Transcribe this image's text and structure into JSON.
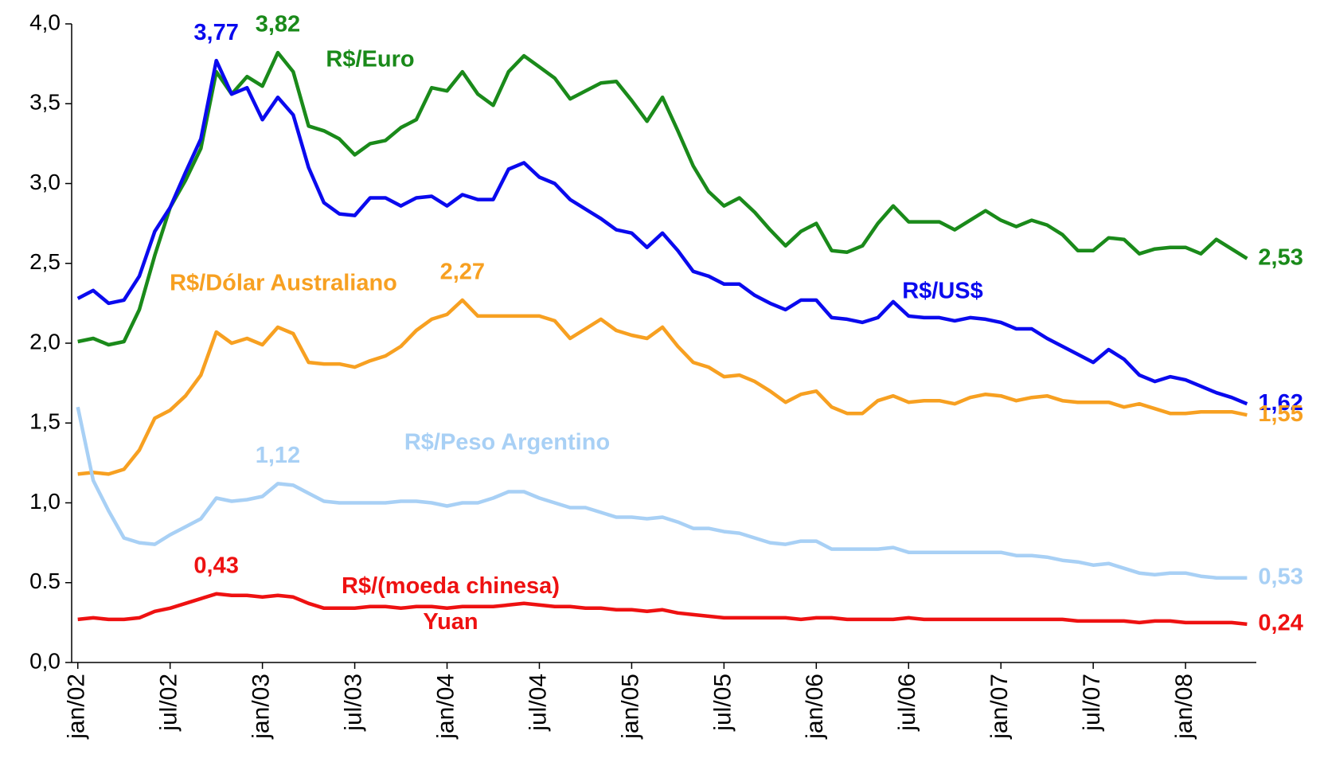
{
  "chart_data": {
    "type": "line",
    "categories": [
      "jan/02",
      null,
      null,
      null,
      null,
      null,
      "jul/02",
      null,
      null,
      null,
      null,
      null,
      "jan/03",
      null,
      null,
      null,
      null,
      null,
      "jul/03",
      null,
      null,
      null,
      null,
      null,
      "jan/04",
      null,
      null,
      null,
      null,
      null,
      "jul/04",
      null,
      null,
      null,
      null,
      null,
      "jan/05",
      null,
      null,
      null,
      null,
      null,
      "jul/05",
      null,
      null,
      null,
      null,
      null,
      "jan/06",
      null,
      null,
      null,
      null,
      null,
      "jul/06",
      null,
      null,
      null,
      null,
      null,
      "jan/07",
      null,
      null,
      null,
      null,
      null,
      "jul/07",
      null,
      null,
      null,
      null,
      null,
      "jan/08",
      null,
      null,
      null,
      null
    ],
    "ylim": [
      0,
      4
    ],
    "yticks": [
      {
        "value": 0,
        "label": "0,0"
      },
      {
        "value": 0.5,
        "label": "0.5"
      },
      {
        "value": 1,
        "label": "1,0"
      },
      {
        "value": 1.5,
        "label": "1,5"
      },
      {
        "value": 2,
        "label": "2,0"
      },
      {
        "value": 2.5,
        "label": "2,5"
      },
      {
        "value": 3,
        "label": "3,0"
      },
      {
        "value": 3.5,
        "label": "3,5"
      },
      {
        "value": 4,
        "label": "4,0"
      }
    ],
    "grid": false,
    "series": [
      {
        "name": "R$/Euro",
        "color": "#1a8a1a",
        "values": [
          2.01,
          2.03,
          1.99,
          2.01,
          2.21,
          2.55,
          2.85,
          3.02,
          3.22,
          3.7,
          3.56,
          3.67,
          3.61,
          3.82,
          3.7,
          3.36,
          3.33,
          3.28,
          3.18,
          3.25,
          3.27,
          3.35,
          3.4,
          3.6,
          3.58,
          3.7,
          3.56,
          3.49,
          3.7,
          3.8,
          3.73,
          3.66,
          3.53,
          3.58,
          3.63,
          3.64,
          3.52,
          3.39,
          3.54,
          3.33,
          3.11,
          2.95,
          2.86,
          2.91,
          2.82,
          2.71,
          2.61,
          2.7,
          2.75,
          2.58,
          2.57,
          2.61,
          2.75,
          2.86,
          2.76,
          2.76,
          2.76,
          2.71,
          2.77,
          2.83,
          2.77,
          2.73,
          2.77,
          2.74,
          2.68,
          2.58,
          2.58,
          2.66,
          2.65,
          2.56,
          2.59,
          2.6,
          2.6,
          2.56,
          2.65,
          2.59,
          2.53
        ],
        "value_labels": [
          null,
          null,
          null,
          null,
          null,
          null,
          null,
          null,
          null,
          null,
          null,
          null,
          null,
          "3,82",
          null,
          null,
          null,
          null,
          null,
          null,
          null,
          null,
          null,
          null,
          null,
          null,
          null,
          null,
          null,
          null,
          null,
          null,
          null,
          null,
          null,
          null,
          null,
          null,
          null,
          null,
          null,
          null,
          null,
          null,
          null,
          null,
          null,
          null,
          null,
          null,
          null,
          null,
          null,
          null,
          null,
          null,
          null,
          null,
          null,
          null,
          null,
          null,
          null,
          null,
          null,
          null,
          null,
          null,
          null,
          null,
          null,
          null,
          null,
          null,
          null,
          null,
          "2,53"
        ]
      },
      {
        "name": "R$/US$",
        "color": "#0a0aee",
        "values": [
          2.28,
          2.33,
          2.25,
          2.27,
          2.42,
          2.7,
          2.85,
          3.07,
          3.28,
          3.77,
          3.56,
          3.6,
          3.4,
          3.54,
          3.43,
          3.1,
          2.88,
          2.81,
          2.8,
          2.91,
          2.91,
          2.86,
          2.91,
          2.92,
          2.86,
          2.93,
          2.9,
          2.9,
          3.09,
          3.13,
          3.04,
          3.0,
          2.9,
          2.84,
          2.78,
          2.71,
          2.69,
          2.6,
          2.69,
          2.58,
          2.45,
          2.42,
          2.37,
          2.37,
          2.3,
          2.25,
          2.21,
          2.27,
          2.27,
          2.16,
          2.15,
          2.13,
          2.16,
          2.26,
          2.17,
          2.16,
          2.16,
          2.14,
          2.16,
          2.15,
          2.13,
          2.09,
          2.09,
          2.03,
          1.98,
          1.93,
          1.88,
          1.96,
          1.9,
          1.8,
          1.76,
          1.79,
          1.77,
          1.73,
          1.69,
          1.66,
          1.62
        ],
        "value_labels": [
          null,
          null,
          null,
          null,
          null,
          null,
          null,
          null,
          null,
          "3,77",
          null,
          null,
          null,
          null,
          null,
          null,
          null,
          null,
          null,
          null,
          null,
          null,
          null,
          null,
          null,
          null,
          null,
          null,
          null,
          null,
          null,
          null,
          null,
          null,
          null,
          null,
          null,
          null,
          null,
          null,
          null,
          null,
          null,
          null,
          null,
          null,
          null,
          null,
          null,
          null,
          null,
          null,
          null,
          null,
          null,
          null,
          null,
          null,
          null,
          null,
          null,
          null,
          null,
          null,
          null,
          null,
          null,
          null,
          null,
          null,
          null,
          null,
          null,
          null,
          null,
          null,
          "1,62"
        ]
      },
      {
        "name": "R$/Dólar Australiano",
        "color": "#f7a021",
        "values": [
          1.18,
          1.19,
          1.18,
          1.21,
          1.33,
          1.53,
          1.58,
          1.67,
          1.8,
          2.07,
          2.0,
          2.03,
          1.99,
          2.1,
          2.06,
          1.88,
          1.87,
          1.87,
          1.85,
          1.89,
          1.92,
          1.98,
          2.08,
          2.15,
          2.18,
          2.27,
          2.17,
          2.17,
          2.17,
          2.17,
          2.17,
          2.14,
          2.03,
          2.09,
          2.15,
          2.08,
          2.05,
          2.03,
          2.1,
          1.98,
          1.88,
          1.85,
          1.79,
          1.8,
          1.76,
          1.7,
          1.63,
          1.68,
          1.7,
          1.6,
          1.56,
          1.56,
          1.64,
          1.67,
          1.63,
          1.64,
          1.64,
          1.62,
          1.66,
          1.68,
          1.67,
          1.64,
          1.66,
          1.67,
          1.64,
          1.63,
          1.63,
          1.63,
          1.6,
          1.62,
          1.59,
          1.56,
          1.56,
          1.57,
          1.57,
          1.57,
          1.55
        ],
        "value_labels": [
          null,
          null,
          null,
          null,
          null,
          null,
          null,
          null,
          null,
          null,
          null,
          null,
          null,
          null,
          null,
          null,
          null,
          null,
          null,
          null,
          null,
          null,
          null,
          null,
          null,
          "2,27",
          null,
          null,
          null,
          null,
          null,
          null,
          null,
          null,
          null,
          null,
          null,
          null,
          null,
          null,
          null,
          null,
          null,
          null,
          null,
          null,
          null,
          null,
          null,
          null,
          null,
          null,
          null,
          null,
          null,
          null,
          null,
          null,
          null,
          null,
          null,
          null,
          null,
          null,
          null,
          null,
          null,
          null,
          null,
          null,
          null,
          null,
          null,
          null,
          null,
          null,
          "1,55"
        ]
      },
      {
        "name": "R$/Peso Argentino",
        "color": "#a8d0f5",
        "values": [
          1.6,
          1.14,
          0.95,
          0.78,
          0.75,
          0.74,
          0.8,
          0.85,
          0.9,
          1.03,
          1.01,
          1.02,
          1.04,
          1.12,
          1.11,
          1.06,
          1.01,
          1.0,
          1.0,
          1.0,
          1.0,
          1.01,
          1.01,
          1.0,
          0.98,
          1.0,
          1.0,
          1.03,
          1.07,
          1.07,
          1.03,
          1.0,
          0.97,
          0.97,
          0.94,
          0.91,
          0.91,
          0.9,
          0.91,
          0.88,
          0.84,
          0.84,
          0.82,
          0.81,
          0.78,
          0.75,
          0.74,
          0.76,
          0.76,
          0.71,
          0.71,
          0.71,
          0.71,
          0.72,
          0.69,
          0.69,
          0.69,
          0.69,
          0.69,
          0.69,
          0.69,
          0.67,
          0.67,
          0.66,
          0.64,
          0.63,
          0.61,
          0.62,
          0.59,
          0.56,
          0.55,
          0.56,
          0.56,
          0.54,
          0.53,
          0.53,
          0.53
        ],
        "value_labels": [
          null,
          null,
          null,
          null,
          null,
          null,
          null,
          null,
          null,
          null,
          null,
          null,
          null,
          "1,12",
          null,
          null,
          null,
          null,
          null,
          null,
          null,
          null,
          null,
          null,
          null,
          null,
          null,
          null,
          null,
          null,
          null,
          null,
          null,
          null,
          null,
          null,
          null,
          null,
          null,
          null,
          null,
          null,
          null,
          null,
          null,
          null,
          null,
          null,
          null,
          null,
          null,
          null,
          null,
          null,
          null,
          null,
          null,
          null,
          null,
          null,
          null,
          null,
          null,
          null,
          null,
          null,
          null,
          null,
          null,
          null,
          null,
          null,
          null,
          null,
          null,
          null,
          "0,53"
        ]
      },
      {
        "name": "R$/(moeda chinesa) Yuan",
        "color": "#ee1111",
        "values": [
          0.27,
          0.28,
          0.27,
          0.27,
          0.28,
          0.32,
          0.34,
          0.37,
          0.4,
          0.43,
          0.42,
          0.42,
          0.41,
          0.42,
          0.41,
          0.37,
          0.34,
          0.34,
          0.34,
          0.35,
          0.35,
          0.34,
          0.35,
          0.35,
          0.34,
          0.35,
          0.35,
          0.35,
          0.36,
          0.37,
          0.36,
          0.35,
          0.35,
          0.34,
          0.34,
          0.33,
          0.33,
          0.32,
          0.33,
          0.31,
          0.3,
          0.29,
          0.28,
          0.28,
          0.28,
          0.28,
          0.28,
          0.27,
          0.28,
          0.28,
          0.27,
          0.27,
          0.27,
          0.27,
          0.28,
          0.27,
          0.27,
          0.27,
          0.27,
          0.27,
          0.27,
          0.27,
          0.27,
          0.27,
          0.27,
          0.26,
          0.26,
          0.26,
          0.26,
          0.25,
          0.26,
          0.26,
          0.25,
          0.25,
          0.25,
          0.25,
          0.24
        ],
        "value_labels": [
          null,
          null,
          null,
          null,
          null,
          null,
          null,
          null,
          null,
          "0,43",
          null,
          null,
          null,
          null,
          null,
          null,
          null,
          null,
          null,
          null,
          null,
          null,
          null,
          null,
          null,
          null,
          null,
          null,
          null,
          null,
          null,
          null,
          null,
          null,
          null,
          null,
          null,
          null,
          null,
          null,
          null,
          null,
          null,
          null,
          null,
          null,
          null,
          null,
          null,
          null,
          null,
          null,
          null,
          null,
          null,
          null,
          null,
          null,
          null,
          null,
          null,
          null,
          null,
          null,
          null,
          null,
          null,
          null,
          null,
          null,
          null,
          null,
          null,
          null,
          null,
          null,
          "0,24"
        ]
      }
    ]
  }
}
